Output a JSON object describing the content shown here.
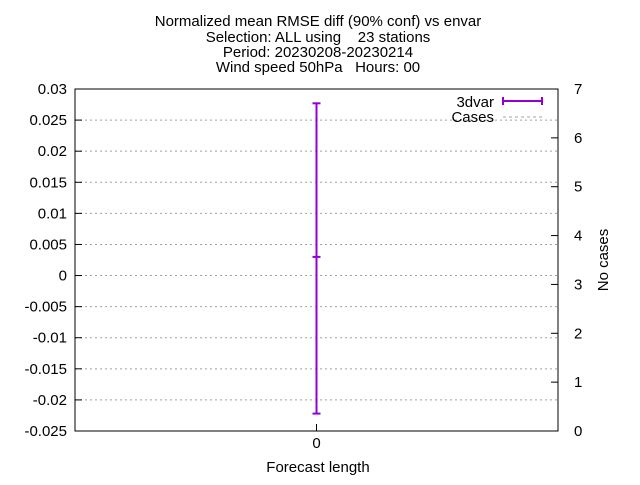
{
  "chart_data": {
    "type": "errorbar",
    "title_lines": [
      "Normalized mean RMSE diff (90% conf) vs envar",
      "Selection: ALL using    23 stations",
      "Period: 20230208-20230214",
      "Wind speed 50hPa   Hours: 00"
    ],
    "xlabel": "Forecast length",
    "ylabel": "",
    "y2label": "No cases",
    "x_ticks": [
      "0"
    ],
    "xlim": [
      -1,
      1
    ],
    "ylim": [
      -0.025,
      0.03
    ],
    "y_ticks": [
      "0.03",
      "0.025",
      "0.02",
      "0.015",
      "0.01",
      "0.005",
      "0",
      "-0.005",
      "-0.01",
      "-0.015",
      "-0.02",
      "-0.025"
    ],
    "y_tick_values": [
      0.03,
      0.025,
      0.02,
      0.015,
      0.01,
      0.005,
      0,
      -0.005,
      -0.01,
      -0.015,
      -0.02,
      -0.025
    ],
    "y2lim": [
      0,
      7
    ],
    "y2_ticks": [
      "7",
      "6",
      "5",
      "4",
      "3",
      "2",
      "1",
      "0"
    ],
    "y2_tick_values": [
      7,
      6,
      5,
      4,
      3,
      2,
      1,
      0
    ],
    "grid": "horizontal dotted",
    "legend_position": "top-right",
    "series": [
      {
        "name": "3dvar",
        "color": "#9400d3",
        "points": [
          {
            "x": 0,
            "y": 0.003,
            "low": -0.0222,
            "high": 0.0277
          }
        ]
      },
      {
        "name": "Cases",
        "color": "#a0a0a0",
        "axis": "y2",
        "points": []
      }
    ]
  }
}
